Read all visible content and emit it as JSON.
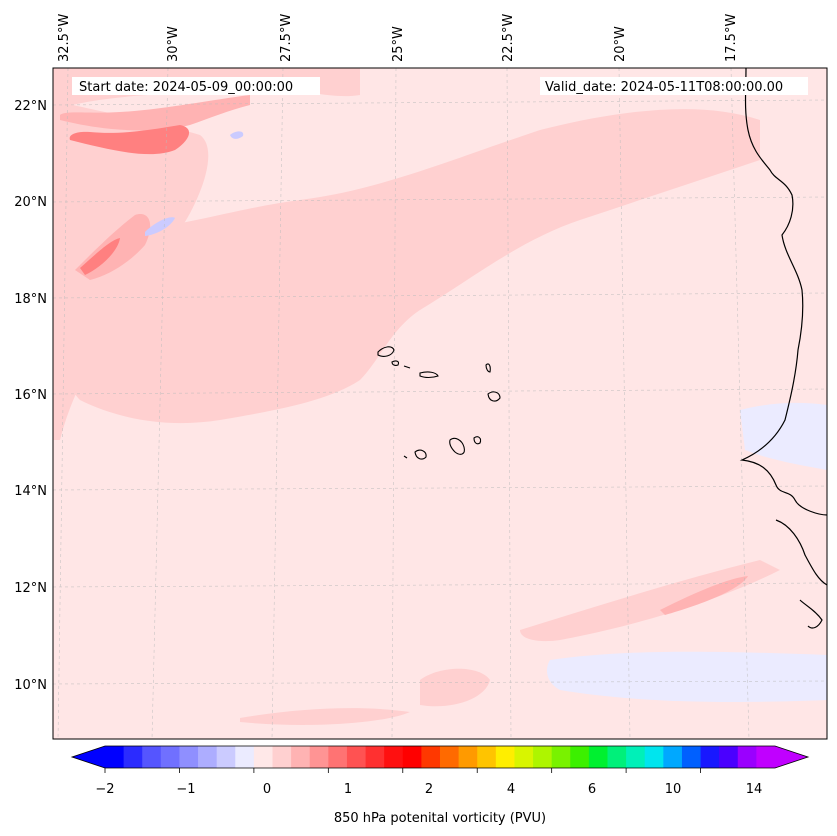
{
  "map": {
    "start_label": "Start date: 2024-05-09_00:00:00",
    "valid_label": "Valid_date: 2024-05-11T08:00:00.00",
    "lon_labels": [
      "32.5°W",
      "30°W",
      "27.5°W",
      "25°W",
      "22.5°W",
      "20°W",
      "17.5°W"
    ],
    "lat_labels": [
      "22°N",
      "20°N",
      "18°N",
      "16°N",
      "14°N",
      "12°N",
      "10°N"
    ],
    "gridlines": true,
    "background_color": "#ffe6e6",
    "coastline_color": "#000000"
  },
  "colorbar": {
    "label": "850 hPa potenital vorticity (PVU)",
    "tick_labels": [
      "−2",
      "−1",
      "0",
      "1",
      "2",
      "4",
      "6",
      "10",
      "14"
    ],
    "colors": [
      "#0000ff",
      "#2b2bff",
      "#5555ff",
      "#7070ff",
      "#8f8fff",
      "#adadff",
      "#cbcbff",
      "#ebebff",
      "#ffe8e8",
      "#ffd0d0",
      "#ffb3b3",
      "#ff9494",
      "#ff7373",
      "#ff5252",
      "#ff3030",
      "#ff1010",
      "#ff0000",
      "#ff3800",
      "#ff6a00",
      "#ff9a00",
      "#ffc400",
      "#ffee00",
      "#d8f500",
      "#aef500",
      "#79f200",
      "#3cf000",
      "#00f030",
      "#00f07a",
      "#00f0b8",
      "#00e5ee",
      "#00a8ff",
      "#0060ff",
      "#1818ff",
      "#4a00ff",
      "#9a00ff",
      "#c000ff"
    ],
    "extend": "both"
  }
}
